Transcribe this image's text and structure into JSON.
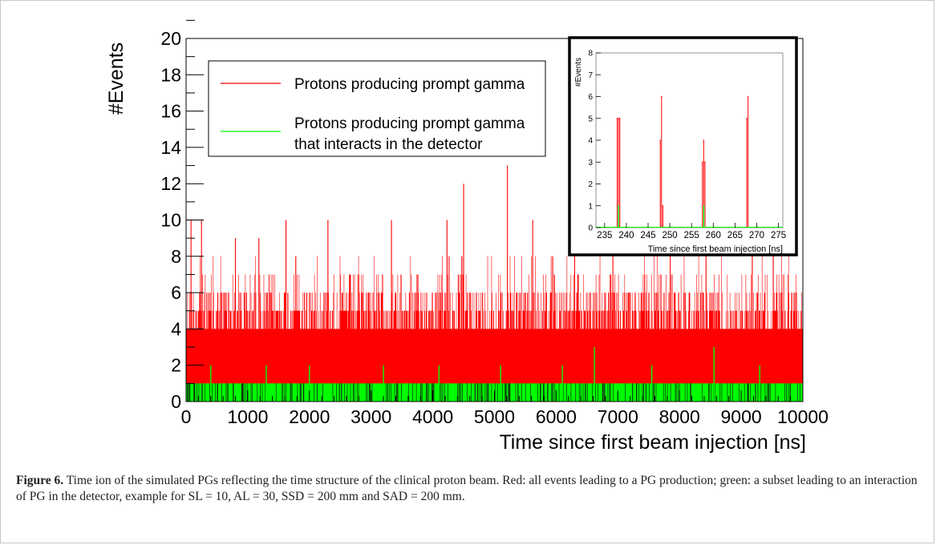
{
  "chart_data": [
    {
      "type": "bar",
      "xlabel": "Time since first beam injection [ns]",
      "ylabel": "#Events",
      "xlim": [
        0,
        10000
      ],
      "ylim": [
        0,
        20
      ],
      "x_ticks": [
        "0",
        "1000",
        "2000",
        "3000",
        "4000",
        "5000",
        "6000",
        "7000",
        "8000",
        "9000",
        "10000"
      ],
      "y_ticks": [
        "0",
        "2",
        "4",
        "6",
        "8",
        "10",
        "12",
        "14",
        "16",
        "18",
        "20"
      ],
      "legend_position": "top-left",
      "series": [
        {
          "name": "Protons producing prompt gamma",
          "color": "#ff0000",
          "typical_range": [
            0,
            7
          ],
          "peaks": [
            {
              "x": 80,
              "y": 10
            },
            {
              "x": 250,
              "y": 10
            },
            {
              "x": 800,
              "y": 9
            },
            {
              "x": 1180,
              "y": 9
            },
            {
              "x": 1620,
              "y": 10
            },
            {
              "x": 2300,
              "y": 10
            },
            {
              "x": 3330,
              "y": 10
            },
            {
              "x": 4230,
              "y": 10
            },
            {
              "x": 4500,
              "y": 12
            },
            {
              "x": 5210,
              "y": 13
            },
            {
              "x": 5620,
              "y": 10
            },
            {
              "x": 6300,
              "y": 9
            },
            {
              "x": 6920,
              "y": 10
            },
            {
              "x": 7850,
              "y": 10
            },
            {
              "x": 8430,
              "y": 10
            },
            {
              "x": 9180,
              "y": 10
            },
            {
              "x": 9520,
              "y": 9
            }
          ]
        },
        {
          "name": "Protons producing prompt gamma that interacts in the detector",
          "color": "#00ff00",
          "typical_range": [
            0,
            1
          ],
          "peaks": [
            {
              "x": 400,
              "y": 2
            },
            {
              "x": 1300,
              "y": 2
            },
            {
              "x": 2000,
              "y": 2
            },
            {
              "x": 3200,
              "y": 2
            },
            {
              "x": 4100,
              "y": 2
            },
            {
              "x": 5100,
              "y": 2
            },
            {
              "x": 6100,
              "y": 2
            },
            {
              "x": 6620,
              "y": 3
            },
            {
              "x": 7550,
              "y": 2
            },
            {
              "x": 8560,
              "y": 3
            },
            {
              "x": 9300,
              "y": 2
            }
          ]
        }
      ]
    },
    {
      "type": "bar",
      "xlabel": "Time since first beam injection [ns]",
      "ylabel": "#Events",
      "xlim": [
        233,
        276
      ],
      "ylim": [
        0,
        8
      ],
      "x_ticks": [
        "235",
        "240",
        "245",
        "250",
        "255",
        "260",
        "265",
        "270",
        "275"
      ],
      "y_ticks": [
        "0",
        "1",
        "2",
        "3",
        "4",
        "5",
        "6",
        "7",
        "8"
      ],
      "series": [
        {
          "name": "Protons producing prompt gamma",
          "color": "#ff0000",
          "x": [
            237.9,
            238.2,
            238.5,
            247.8,
            248.1,
            248.4,
            257.5,
            257.8,
            258.1,
            267.7,
            268.0
          ],
          "y": [
            5,
            5,
            5,
            4,
            6,
            1,
            3,
            4,
            3,
            5,
            6
          ]
        },
        {
          "name": "Protons producing prompt gamma that interacts in the detector",
          "color": "#00ff00",
          "x": [
            238.2,
            257.8
          ],
          "y": [
            1,
            1
          ]
        }
      ]
    }
  ],
  "caption": {
    "label": "Figure 6.",
    "text": "Time ion of the simulated PGs reflecting the time structure of the clinical proton beam. Red: all events leading to a PG production; green: a subset leading to an interaction of PG in the detector, example for SL = 10, AL = 30, SSD = 200 mm and SAD = 200 mm."
  }
}
